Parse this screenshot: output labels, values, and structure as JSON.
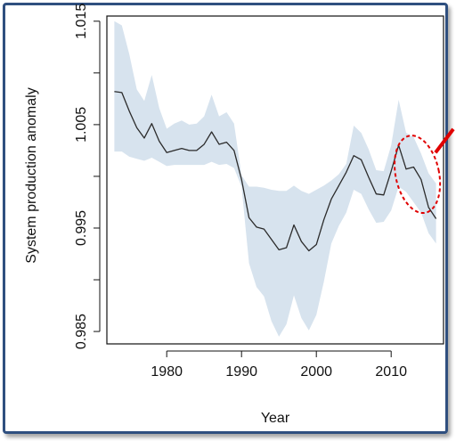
{
  "colors": {
    "band": "#d7e3ee",
    "line": "#2b2b2b",
    "highlight": "#e00000",
    "frame": "#2f4f7f"
  },
  "chart_data": {
    "type": "line",
    "title": "",
    "xlabel": "Year",
    "ylabel": "System production anomaly",
    "xlim": [
      1972,
      2017
    ],
    "ylim": [
      0.9838,
      1.0155
    ],
    "x_ticks": [
      1980,
      1990,
      2000,
      2010
    ],
    "x_tick_labels": [
      "1980",
      "1990",
      "2000",
      "2010"
    ],
    "y_ticks": [
      0.985,
      0.99,
      0.995,
      1.0,
      1.005,
      1.01,
      1.015
    ],
    "y_tick_labels": [
      "0.985",
      "",
      "0.995",
      "",
      "1.005",
      "",
      "1.015"
    ],
    "grid": false,
    "series": [
      {
        "x": [
          1973,
          1974,
          1975,
          1976,
          1977,
          1978,
          1979,
          1980,
          1981,
          1982,
          1983,
          1984,
          1985,
          1986,
          1987,
          1988,
          1989,
          1990,
          1991,
          1992,
          1993,
          1994,
          1995,
          1996,
          1997,
          1998,
          1999,
          2000,
          2001,
          2002,
          2003,
          2004,
          2005,
          2006,
          2007,
          2008,
          2009,
          2010,
          2011,
          2012,
          2013,
          2014,
          2015,
          2016
        ],
        "values": [
          1.0082,
          1.0081,
          1.0063,
          1.0047,
          1.0037,
          1.0051,
          1.0034,
          1.0023,
          1.0025,
          1.0027,
          1.0025,
          1.0025,
          1.0031,
          1.0043,
          1.0031,
          1.0033,
          1.0025,
          0.9997,
          0.996,
          0.9951,
          0.9949,
          0.9939,
          0.9929,
          0.9931,
          0.9953,
          0.9937,
          0.9928,
          0.9934,
          0.9958,
          0.9978,
          0.9991,
          1.0004,
          1.002,
          1.0016,
          0.9999,
          0.9983,
          0.9982,
          1.0005,
          1.003,
          1.0007,
          1.0009,
          0.9997,
          0.997,
          0.9959
        ],
        "lower": [
          1.0024,
          1.0024,
          1.0019,
          1.0017,
          1.0015,
          1.0018,
          1.0014,
          1.001,
          1.0011,
          1.0011,
          1.0011,
          1.0011,
          1.0011,
          1.0014,
          1.0011,
          1.0012,
          1.0008,
          0.999,
          0.9916,
          0.9893,
          0.9884,
          0.986,
          0.9845,
          0.9857,
          0.9885,
          0.9863,
          0.9851,
          0.9866,
          0.9898,
          0.9935,
          0.9952,
          0.9965,
          0.9987,
          0.9983,
          0.9968,
          0.9955,
          0.9956,
          0.9967,
          0.999,
          0.9985,
          0.9975,
          0.9965,
          0.9945,
          0.9935
        ],
        "upper": [
          1.015,
          1.0146,
          1.0118,
          1.0084,
          1.0073,
          1.0098,
          1.0066,
          1.0046,
          1.0051,
          1.0054,
          1.005,
          1.0051,
          1.0058,
          1.0079,
          1.0058,
          1.0062,
          1.0051,
          1.0001,
          0.999,
          0.999,
          0.9989,
          0.9987,
          0.9986,
          0.9986,
          0.9991,
          0.9986,
          0.9983,
          0.9987,
          0.9991,
          0.9996,
          1.0002,
          1.0012,
          1.0049,
          1.0042,
          1.0026,
          1.0006,
          1.0005,
          1.003,
          1.0074,
          1.0042,
          1.0038,
          1.0022,
          1.0003,
          0.9993
        ]
      }
    ],
    "annotation": {
      "type": "dashed-ellipse",
      "cx": 2013.5,
      "cy": 1.0002,
      "rx_years": 2.9,
      "ry_units": 0.0038,
      "arrow": true
    }
  }
}
